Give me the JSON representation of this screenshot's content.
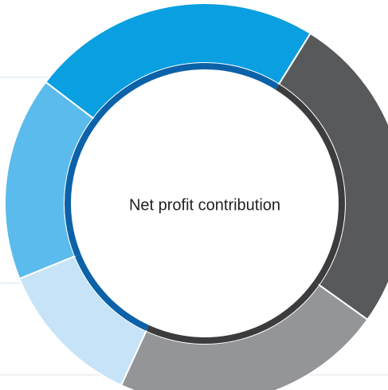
{
  "chart_data": {
    "type": "donut",
    "title": "Net profit contribution",
    "values": [
      23.5,
      26,
      22,
      12,
      16.5
    ],
    "colors": [
      "#0a9fe0",
      "#58595b",
      "#949598",
      "#c6e3f7",
      "#5bbbec"
    ],
    "ring_colors": [
      "#0b62a8",
      "#3c3c3e",
      "#3c3c3e",
      "#0b62a8",
      "#0b62a8"
    ]
  }
}
